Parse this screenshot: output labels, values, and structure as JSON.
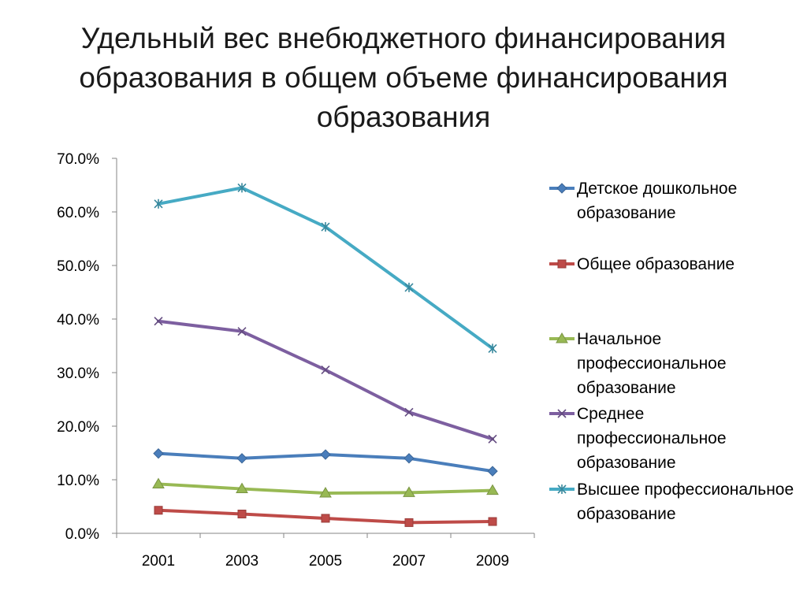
{
  "title_lines": [
    "Удельный вес внебюджетного финансирования",
    "образования в общем объеме финансирования",
    "образования"
  ],
  "chart_data": {
    "type": "line",
    "title": "Удельный вес внебюджетного финансирования образования в общем объеме финансирования образования",
    "xlabel": "",
    "ylabel": "",
    "categories": [
      "2001",
      "2003",
      "2005",
      "2007",
      "2009"
    ],
    "ylim": [
      0,
      70
    ],
    "yticks": [
      "0.0%",
      "10.0%",
      "20.0%",
      "30.0%",
      "40.0%",
      "50.0%",
      "60.0%",
      "70.0%"
    ],
    "grid": false,
    "legend_position": "right",
    "series": [
      {
        "name": "Детское дошкольное образование",
        "values": [
          14.9,
          14.0,
          14.7,
          14.0,
          11.6
        ],
        "color": "#4a7ebb",
        "marker": "diamond"
      },
      {
        "name": "Общее образование",
        "values": [
          4.3,
          3.6,
          2.8,
          2.0,
          2.2
        ],
        "color": "#be4b48",
        "marker": "square"
      },
      {
        "name": "Начальное профессиональное образование",
        "values": [
          9.2,
          8.3,
          7.5,
          7.6,
          8.0
        ],
        "color": "#98b954",
        "marker": "triangle"
      },
      {
        "name": "Среднее профессиональное образование",
        "values": [
          39.6,
          37.7,
          30.5,
          22.6,
          17.6
        ],
        "color": "#7d5fa0",
        "marker": "x"
      },
      {
        "name": "Высшее профессиональное образование",
        "values": [
          61.5,
          64.5,
          57.2,
          45.9,
          34.5
        ],
        "color": "#46aac4",
        "marker": "star"
      }
    ]
  }
}
